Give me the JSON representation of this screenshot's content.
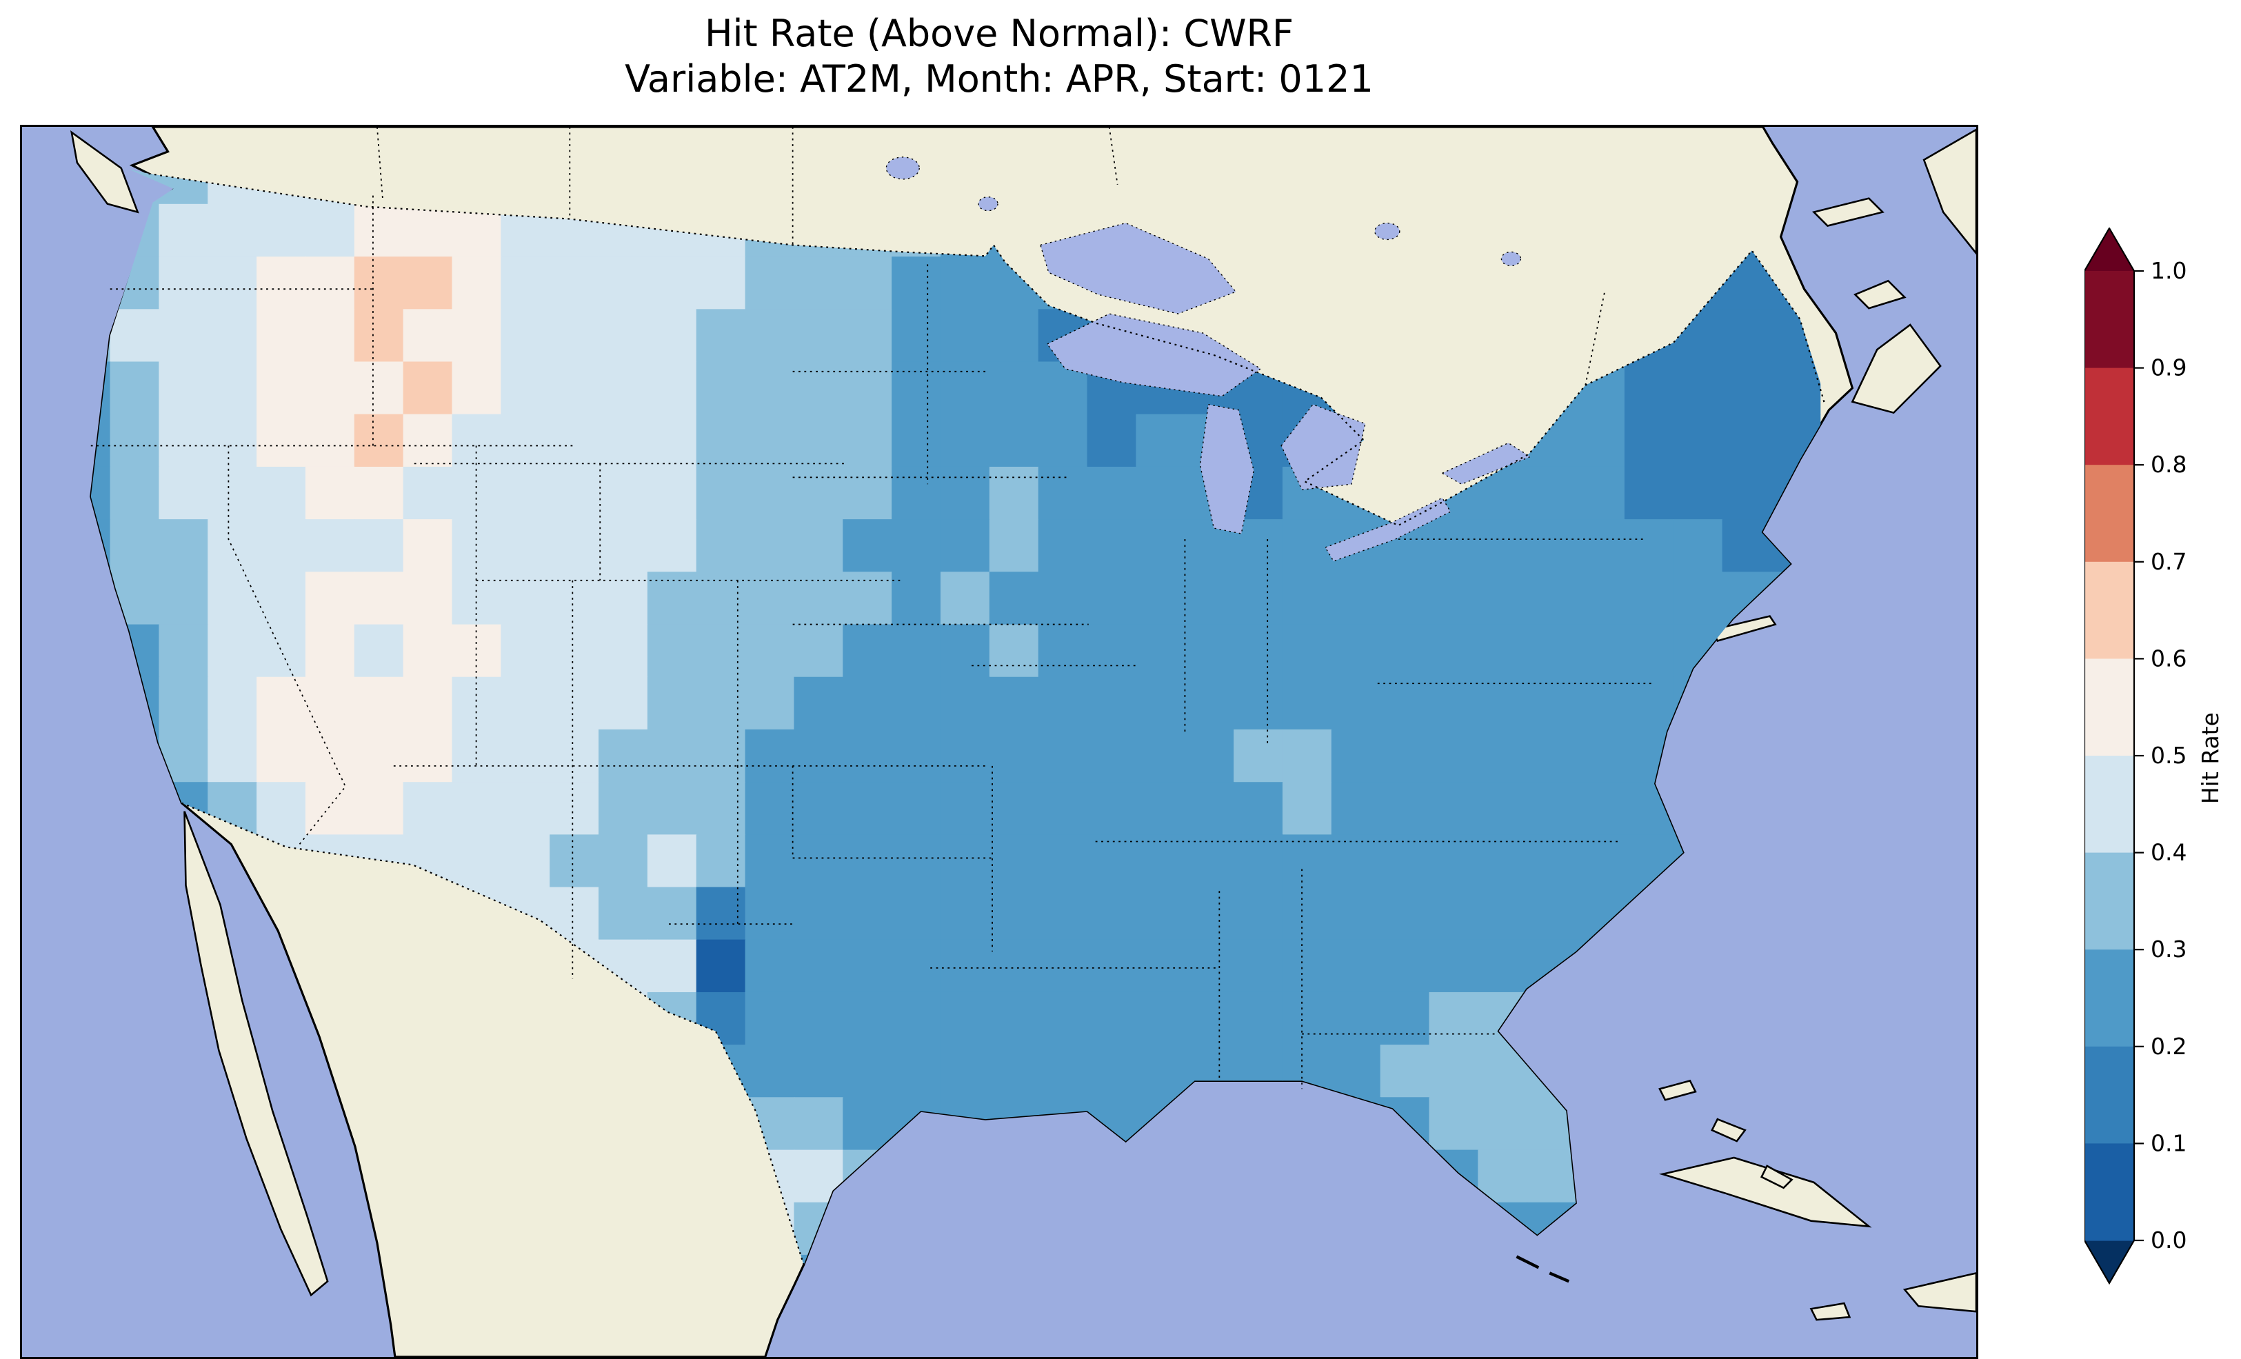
{
  "title": {
    "line1": "Hit Rate (Above Normal): CWRF",
    "line2": "Variable: AT2M, Month: APR, Start: 0121"
  },
  "colorbar": {
    "label": "Hit Rate",
    "tick_labels": [
      "1.0",
      "0.9",
      "0.8",
      "0.7",
      "0.6",
      "0.5",
      "0.4",
      "0.3",
      "0.2",
      "0.1",
      "0.0"
    ],
    "over_color": "#67001f",
    "under_color": "#053061",
    "segment_colors_top_to_bottom": [
      "#7f0c26",
      "#c03038",
      "#e08163",
      "#f9cdb4",
      "#f7efe8",
      "#d3e5f0",
      "#8ec1dc",
      "#4f9ac8",
      "#3480b9",
      "#1a5fa5"
    ]
  },
  "map_colors": {
    "ocean": "#9cade0",
    "land": "#f0eedb",
    "lakes": "#a6b4e6",
    "coastline": "#000000",
    "borders": "#000000"
  },
  "chart_data": {
    "type": "heatmap",
    "title": "Hit Rate (Above Normal): CWRF",
    "subtitle": "Variable: AT2M, Month: APR, Start: 0121",
    "metric": "Hit Rate",
    "category": "Above Normal",
    "model": "CWRF",
    "variable": "AT2M",
    "month": "APR",
    "start": "0121",
    "region": "Contiguous United States",
    "colorbar": {
      "label": "Hit Rate",
      "range": [
        0.0,
        1.0
      ],
      "tick_step": 0.1,
      "colormap": "RdBu_r (blue=low, red=high)",
      "extend": "both"
    },
    "grid_encoding": "Rows run north->south, characters west->east across CONUS. Digit d means hit rate in band [0.1*d, 0.1*(d+1)); cells are clipped to the US boundary (no data over Canada/Mexico/ocean).",
    "grid": {
      "cols": 36,
      "rows": [
        "333444455444444333222211111122111111",
        "334444555444443333222111111122111111",
        "334455665444443332222111111112111111",
        "344455655444433332221111111122111111",
        "234455565444433332222111111222221111",
        "234455654444433332222122112222221111",
        "234445544444433332232222122222221111",
        "233444454444433322232222222222222211",
        "233445554444333332322222222222222222",
        "223445455444333322232222222222222222",
        "223455554444333222222222222222222222",
        "223455554443332222222222332222222222",
        "222345544443332222222222232222222222",
        "222344444433432222222222222222222222",
        "223334444443312222222222222222222222",
        "223344444444402222222222222222222222",
        "222334444444312222222222222233222222",
        "222233344444322222222222222333322222",
        "222222234444223322222222222233332222",
        "222222223444234432222222222223333222",
        "222222222344344322222222222222233322",
        "222222222234443222222222222222223322"
      ]
    },
    "pattern_summary": "Hit rates of 0.2-0.3 (medium blue) dominate the eastern, central-southern and Gulf Coast US; 0.3-0.4 across the plains, Florida and the California coast; 0.4-0.6 (very light blue to near-white) over the Great Basin and interior West; a few 0.6-0.7 (pale salmon) cells over Idaho/western Montana; lowest values 0.0-0.2 (dark blue) in a small cluster in west Texas and over Maine, northern Minnesota/Wisconsin and the Northeast."
  }
}
